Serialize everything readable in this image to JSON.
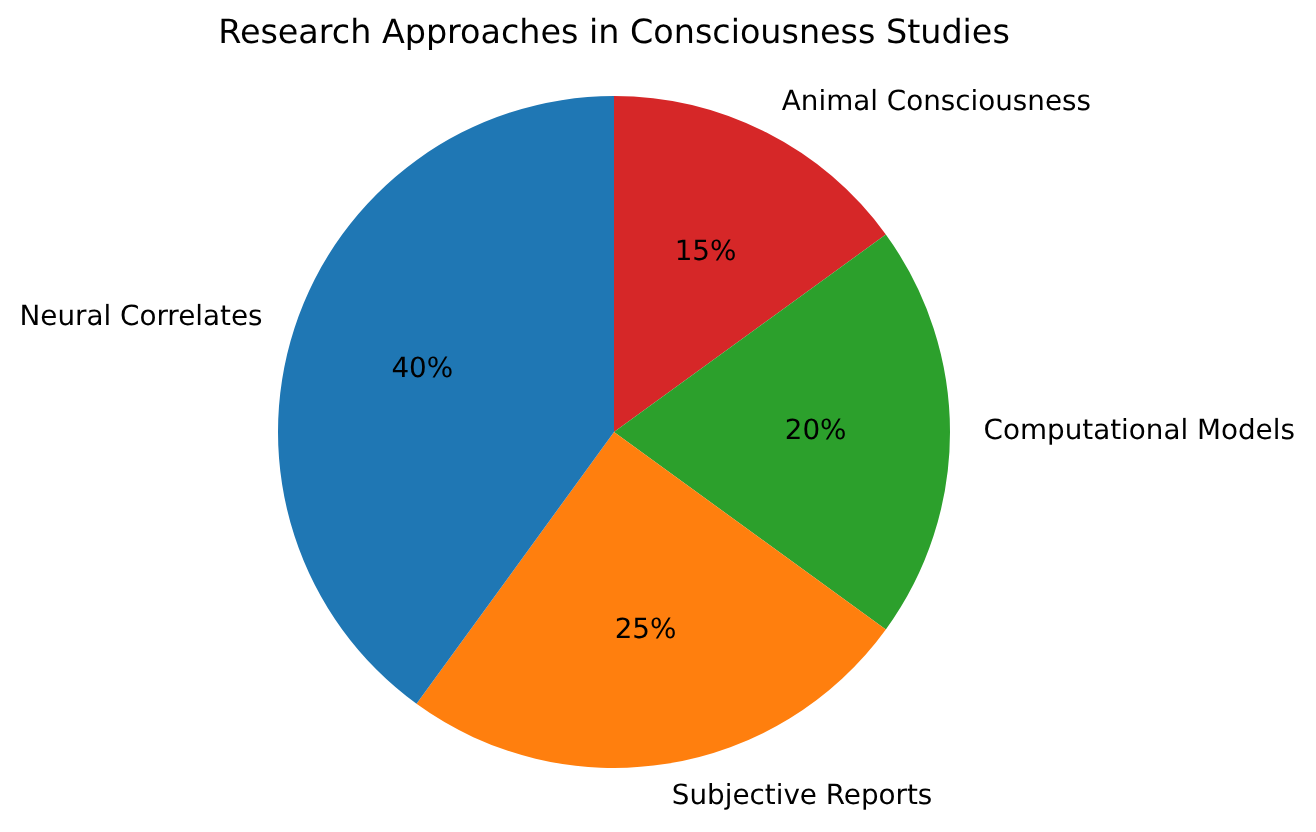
{
  "chart_data": {
    "type": "pie",
    "title": "Research Approaches in Consciousness Studies",
    "categories": [
      "Neural Correlates",
      "Subjective Reports",
      "Computational Models",
      "Animal Consciousness"
    ],
    "values": [
      40,
      25,
      20,
      15
    ],
    "colors": [
      "#1f77b4",
      "#ff7f0e",
      "#2ca02c",
      "#d62728"
    ],
    "value_labels": [
      "40%",
      "25%",
      "20%",
      "15%"
    ]
  }
}
